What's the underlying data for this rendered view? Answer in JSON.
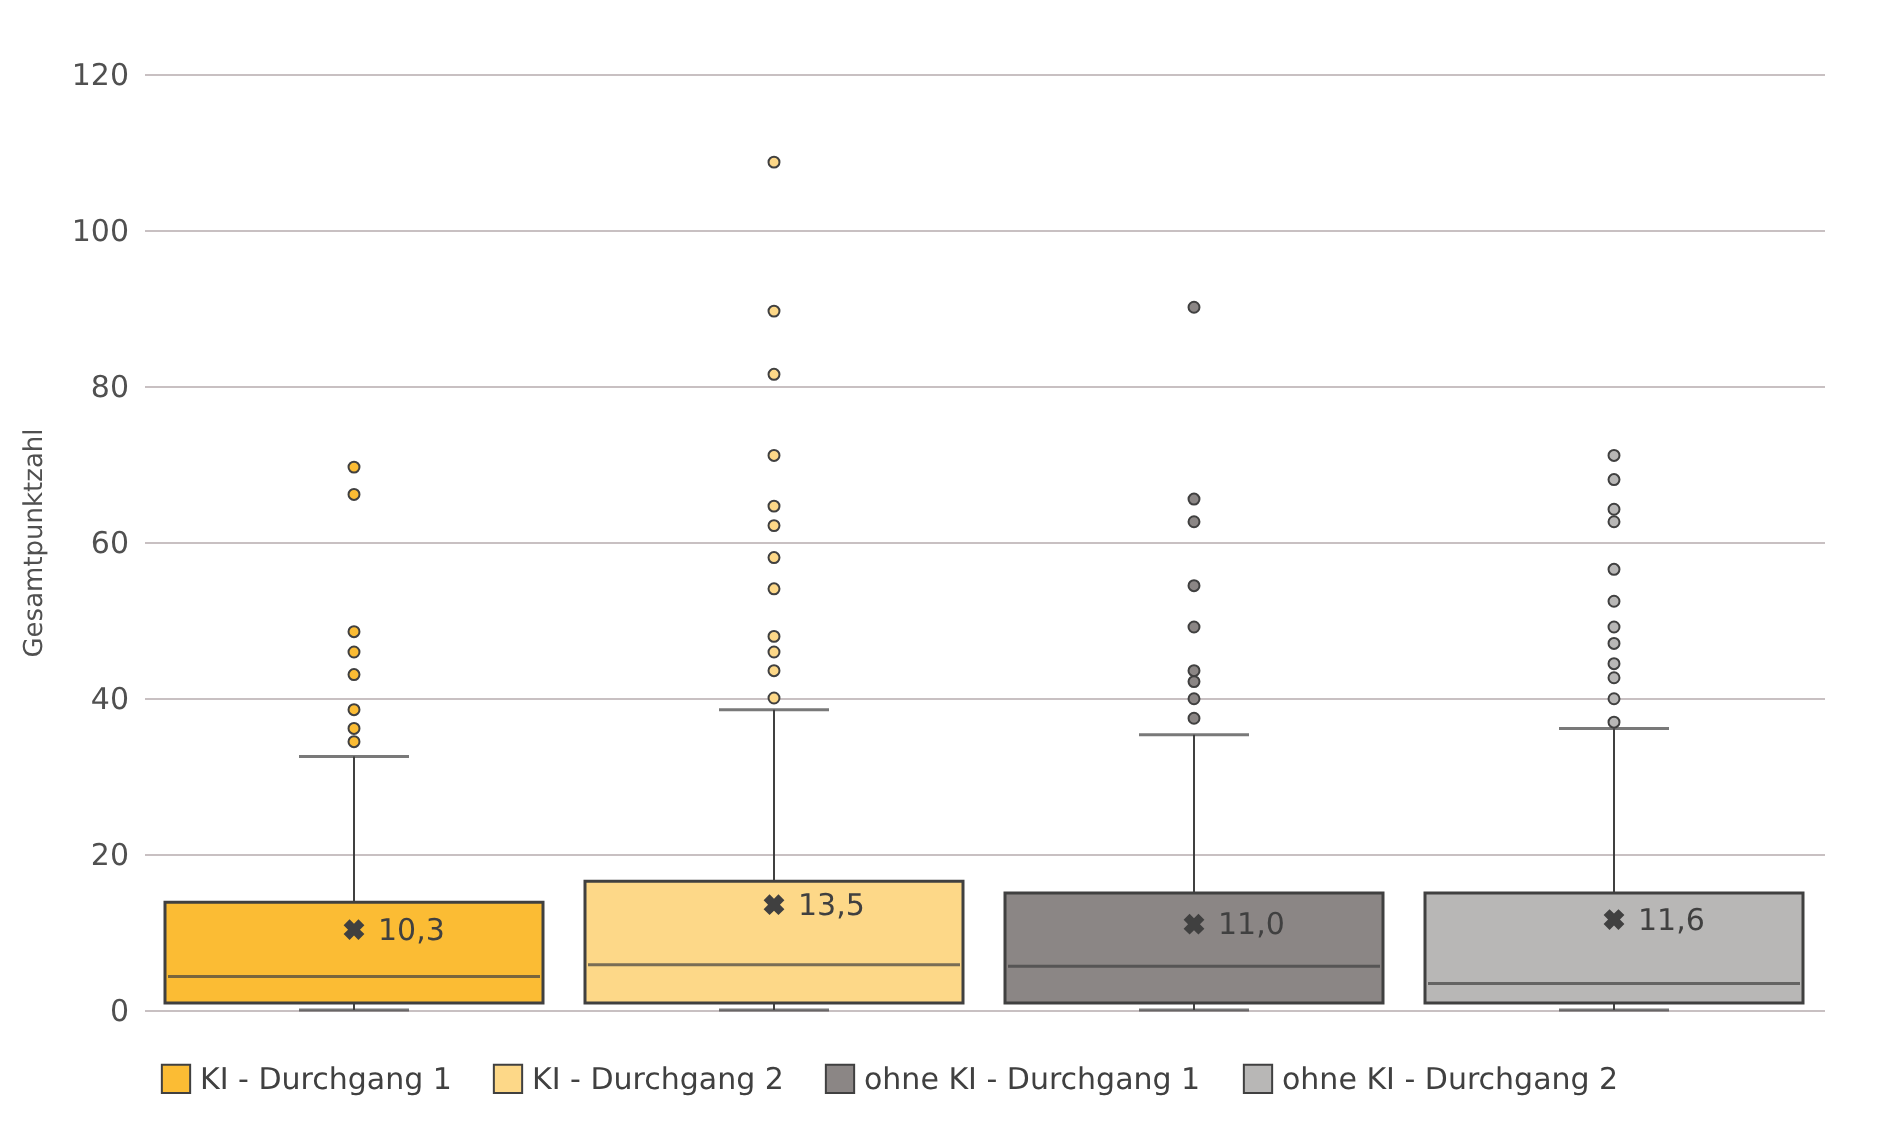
{
  "chart_data": {
    "type": "box",
    "ylabel": "Gesamtpunktzahl",
    "ylim": [
      0,
      120
    ],
    "yticks": [
      0,
      20,
      40,
      60,
      80,
      100,
      120
    ],
    "grid": "y",
    "legend": "bottom",
    "series": [
      {
        "name": "KI - Durchgang 1",
        "color": "#fbbc34",
        "value_labels": [
          "10,3"
        ],
        "boxes": [
          {
            "low": 0,
            "q1": 0.9,
            "median": 4.3,
            "q3": 13.8,
            "high": 32.5,
            "mean": 10.3,
            "outliers": [
              69.6,
              66.1,
              48.5,
              45.9,
              43.0,
              38.5,
              36.1,
              34.4
            ]
          }
        ]
      },
      {
        "name": "KI - Durchgang 2",
        "color": "#fdd888",
        "value_labels": [
          "13,5"
        ],
        "boxes": [
          {
            "low": 0,
            "q1": 0.9,
            "median": 5.8,
            "q3": 16.5,
            "high": 38.5,
            "mean": 13.5,
            "outliers": [
              108.7,
              89.6,
              81.5,
              71.1,
              64.6,
              62.1,
              58.0,
              54.0,
              47.9,
              45.9,
              43.5,
              40.0
            ]
          }
        ]
      },
      {
        "name": "ohne KI - Durchgang 1",
        "color": "#8b8685",
        "value_labels": [
          "11,0"
        ],
        "boxes": [
          {
            "low": 0,
            "q1": 0.9,
            "median": 5.6,
            "q3": 15.0,
            "high": 35.3,
            "mean": 11.0,
            "outliers": [
              90.1,
              65.5,
              62.6,
              54.4,
              49.1,
              43.5,
              42.1,
              39.9,
              37.4
            ]
          }
        ]
      },
      {
        "name": "ohne KI - Durchgang 2",
        "color": "#b8b7b6",
        "value_labels": [
          "11,6"
        ],
        "boxes": [
          {
            "low": 0,
            "q1": 0.9,
            "median": 3.4,
            "q3": 15.0,
            "high": 36.1,
            "mean": 11.6,
            "outliers": [
              71.1,
              68.0,
              64.2,
              62.6,
              56.5,
              52.4,
              49.1,
              47.0,
              44.4,
              42.6,
              39.9,
              36.9
            ]
          }
        ]
      }
    ]
  }
}
